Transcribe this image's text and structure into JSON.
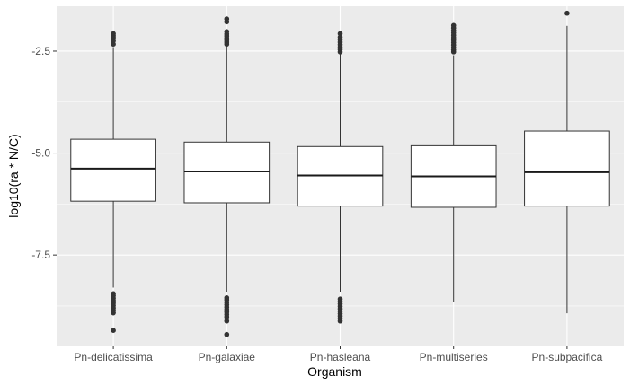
{
  "chart_data": {
    "type": "box",
    "xlabel": "Organism",
    "ylabel": "log10(ra * N/C)",
    "ylim": [
      -9.72,
      -1.4
    ],
    "y_ticks": [
      -2.5,
      -5.0,
      -7.5
    ],
    "y_tick_labels": [
      "-2.5",
      "-5.0",
      "-7.5"
    ],
    "grid": true,
    "categories": [
      "Pn-delicatissima",
      "Pn-galaxiae",
      "Pn-hasleana",
      "Pn-multiseries",
      "Pn-subpacifica"
    ],
    "boxes": [
      {
        "category": "Pn-delicatissima",
        "q1": -6.18,
        "median": -5.38,
        "q3": -4.66,
        "whisker_low": -8.3,
        "whisker_high": -2.4,
        "outliers": [
          -2.07,
          -2.12,
          -2.17,
          -2.25,
          -2.33,
          -8.45,
          -8.5,
          -8.56,
          -8.62,
          -8.68,
          -8.74,
          -8.8,
          -8.86,
          -8.92,
          -9.35
        ]
      },
      {
        "category": "Pn-galaxiae",
        "q1": -6.22,
        "median": -5.45,
        "q3": -4.73,
        "whisker_low": -8.4,
        "whisker_high": -2.38,
        "outliers": [
          -1.71,
          -1.78,
          -2.02,
          -2.08,
          -2.13,
          -2.18,
          -2.23,
          -2.28,
          -2.33,
          -8.55,
          -8.6,
          -8.66,
          -8.72,
          -8.78,
          -8.84,
          -8.9,
          -8.96,
          -9.02,
          -9.12,
          -9.45
        ]
      },
      {
        "category": "Pn-hasleana",
        "q1": -6.3,
        "median": -5.55,
        "q3": -4.84,
        "whisker_low": -8.4,
        "whisker_high": -2.55,
        "outliers": [
          -2.07,
          -2.16,
          -2.22,
          -2.28,
          -2.34,
          -2.4,
          -2.46,
          -2.52,
          -8.58,
          -8.64,
          -8.7,
          -8.76,
          -8.82,
          -8.88,
          -8.94,
          -9.0,
          -9.06,
          -9.12
        ]
      },
      {
        "category": "Pn-multiseries",
        "q1": -6.33,
        "median": -5.57,
        "q3": -4.82,
        "whisker_low": -8.65,
        "whisker_high": -2.6,
        "outliers": [
          -1.87,
          -1.93,
          -1.99,
          -2.05,
          -2.11,
          -2.17,
          -2.23,
          -2.29,
          -2.35,
          -2.41,
          -2.47,
          -2.52
        ]
      },
      {
        "category": "Pn-subpacifica",
        "q1": -6.3,
        "median": -5.47,
        "q3": -4.46,
        "whisker_low": -8.93,
        "whisker_high": -1.88,
        "outliers": [
          -1.57
        ]
      }
    ]
  }
}
